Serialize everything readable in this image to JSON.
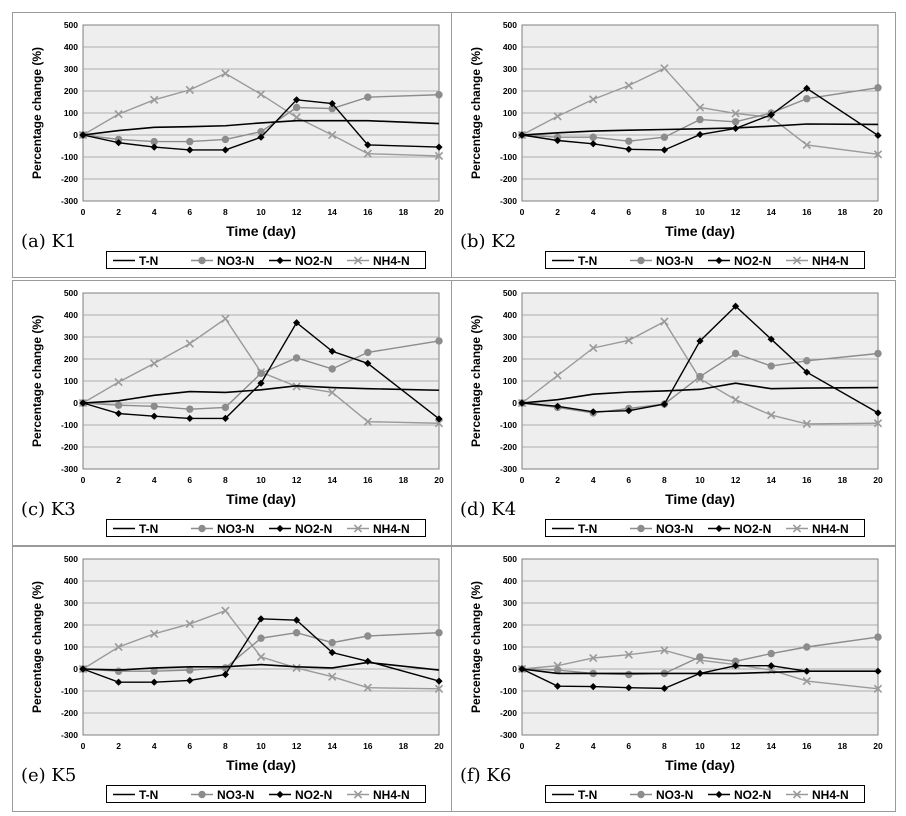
{
  "chart_data": [
    {
      "type": "line",
      "panel_label": "(a) K1",
      "xlabel": "Time (day)",
      "ylabel": "Percentage change (%)",
      "xlim": [
        0,
        20
      ],
      "ylim": [
        -300,
        500
      ],
      "x_ticks": [
        0,
        2,
        4,
        6,
        8,
        10,
        12,
        14,
        16,
        18,
        20
      ],
      "y_ticks": [
        -300,
        -200,
        -100,
        0,
        100,
        200,
        300,
        400,
        500
      ],
      "grid": "horizontal",
      "legend_position": "bottom",
      "x": [
        0,
        2,
        4,
        6,
        8,
        10,
        12,
        14,
        16,
        20
      ],
      "series": [
        {
          "name": "T-N",
          "marker": "none",
          "color": "#000000",
          "values": [
            0,
            20,
            35,
            38,
            42,
            55,
            65,
            65,
            65,
            52
          ]
        },
        {
          "name": "NO3-N",
          "marker": "circle",
          "color": "#8c8c8c",
          "values": [
            0,
            -20,
            -30,
            -30,
            -20,
            15,
            125,
            120,
            172,
            183
          ]
        },
        {
          "name": "NO2-N",
          "marker": "diamond",
          "color": "#000000",
          "values": [
            0,
            -35,
            -55,
            -68,
            -68,
            -10,
            160,
            143,
            -45,
            -55
          ]
        },
        {
          "name": "NH4-N",
          "marker": "x",
          "color": "#9a9a9a",
          "values": [
            0,
            95,
            160,
            205,
            280,
            185,
            80,
            0,
            -85,
            -95
          ]
        }
      ]
    },
    {
      "type": "line",
      "panel_label": "(b) K2",
      "xlabel": "Time (day)",
      "ylabel": "Percentage change (%)",
      "xlim": [
        0,
        20
      ],
      "ylim": [
        -300,
        500
      ],
      "x_ticks": [
        0,
        2,
        4,
        6,
        8,
        10,
        12,
        14,
        16,
        18,
        20
      ],
      "y_ticks": [
        -300,
        -200,
        -100,
        0,
        100,
        200,
        300,
        400,
        500
      ],
      "grid": "horizontal",
      "legend_position": "bottom",
      "x": [
        0,
        2,
        4,
        6,
        8,
        10,
        12,
        14,
        16,
        20
      ],
      "series": [
        {
          "name": "T-N",
          "marker": "none",
          "color": "#000000",
          "values": [
            0,
            10,
            18,
            22,
            25,
            28,
            32,
            40,
            50,
            48
          ]
        },
        {
          "name": "NO3-N",
          "marker": "circle",
          "color": "#8c8c8c",
          "values": [
            0,
            -10,
            -10,
            -28,
            -10,
            70,
            60,
            100,
            165,
            215
          ]
        },
        {
          "name": "NO2-N",
          "marker": "diamond",
          "color": "#000000",
          "values": [
            0,
            -25,
            -40,
            -65,
            -68,
            2,
            30,
            92,
            212,
            -2
          ]
        },
        {
          "name": "NH4-N",
          "marker": "x",
          "color": "#9a9a9a",
          "values": [
            0,
            85,
            162,
            225,
            303,
            125,
            98,
            80,
            -45,
            -88
          ]
        }
      ]
    },
    {
      "type": "line",
      "panel_label": "(c) K3",
      "xlabel": "Time (day)",
      "ylabel": "Percentage change (%)",
      "xlim": [
        0,
        20
      ],
      "ylim": [
        -300,
        500
      ],
      "x_ticks": [
        0,
        2,
        4,
        6,
        8,
        10,
        12,
        14,
        16,
        18,
        20
      ],
      "y_ticks": [
        -300,
        -200,
        -100,
        0,
        100,
        200,
        300,
        400,
        500
      ],
      "grid": "horizontal",
      "legend_position": "bottom",
      "x": [
        0,
        2,
        4,
        6,
        8,
        10,
        12,
        14,
        16,
        20
      ],
      "series": [
        {
          "name": "T-N",
          "marker": "none",
          "color": "#000000",
          "values": [
            0,
            10,
            35,
            52,
            48,
            60,
            78,
            70,
            65,
            58
          ]
        },
        {
          "name": "NO3-N",
          "marker": "circle",
          "color": "#8c8c8c",
          "values": [
            0,
            -10,
            -15,
            -28,
            -20,
            135,
            205,
            155,
            230,
            282
          ]
        },
        {
          "name": "NO2-N",
          "marker": "diamond",
          "color": "#000000",
          "values": [
            0,
            -48,
            -60,
            -70,
            -70,
            90,
            365,
            235,
            180,
            -72
          ]
        },
        {
          "name": "NH4-N",
          "marker": "x",
          "color": "#9a9a9a",
          "values": [
            0,
            95,
            180,
            270,
            383,
            140,
            75,
            48,
            -85,
            -92
          ]
        }
      ]
    },
    {
      "type": "line",
      "panel_label": "(d) K4",
      "xlabel": "Time (day)",
      "ylabel": "Percentage change (%)",
      "xlim": [
        0,
        20
      ],
      "ylim": [
        -300,
        500
      ],
      "x_ticks": [
        0,
        2,
        4,
        6,
        8,
        10,
        12,
        14,
        16,
        18,
        20
      ],
      "y_ticks": [
        -300,
        -200,
        -100,
        0,
        100,
        200,
        300,
        400,
        500
      ],
      "grid": "horizontal",
      "legend_position": "bottom",
      "x": [
        0,
        2,
        4,
        6,
        8,
        10,
        12,
        14,
        16,
        20
      ],
      "series": [
        {
          "name": "T-N",
          "marker": "none",
          "color": "#000000",
          "values": [
            0,
            15,
            40,
            50,
            55,
            62,
            90,
            65,
            68,
            70
          ]
        },
        {
          "name": "NO3-N",
          "marker": "circle",
          "color": "#8c8c8c",
          "values": [
            0,
            -20,
            -45,
            -25,
            -5,
            120,
            225,
            168,
            192,
            225
          ]
        },
        {
          "name": "NO2-N",
          "marker": "diamond",
          "color": "#000000",
          "values": [
            0,
            -15,
            -40,
            -35,
            -5,
            282,
            440,
            290,
            140,
            -45
          ]
        },
        {
          "name": "NH4-N",
          "marker": "x",
          "color": "#9a9a9a",
          "values": [
            0,
            125,
            250,
            285,
            370,
            110,
            15,
            -55,
            -95,
            -92
          ]
        }
      ]
    },
    {
      "type": "line",
      "panel_label": "(e) K5",
      "xlabel": "Time (day)",
      "ylabel": "Percentage change (%)",
      "xlim": [
        0,
        20
      ],
      "ylim": [
        -300,
        500
      ],
      "x_ticks": [
        0,
        2,
        4,
        6,
        8,
        10,
        12,
        14,
        16,
        18,
        20
      ],
      "y_ticks": [
        -300,
        -200,
        -100,
        0,
        100,
        200,
        300,
        400,
        500
      ],
      "grid": "horizontal",
      "legend_position": "bottom",
      "x": [
        0,
        2,
        4,
        6,
        8,
        10,
        12,
        14,
        16,
        20
      ],
      "series": [
        {
          "name": "T-N",
          "marker": "none",
          "color": "#000000",
          "values": [
            0,
            -5,
            5,
            10,
            10,
            20,
            10,
            5,
            30,
            -5
          ]
        },
        {
          "name": "NO3-N",
          "marker": "circle",
          "color": "#8c8c8c",
          "values": [
            0,
            -10,
            -10,
            -5,
            5,
            140,
            165,
            120,
            150,
            165
          ]
        },
        {
          "name": "NO2-N",
          "marker": "diamond",
          "color": "#000000",
          "values": [
            0,
            -60,
            -60,
            -52,
            -25,
            228,
            222,
            75,
            35,
            -55
          ]
        },
        {
          "name": "NH4-N",
          "marker": "x",
          "color": "#9a9a9a",
          "values": [
            0,
            100,
            160,
            205,
            265,
            55,
            5,
            -35,
            -85,
            -90
          ]
        }
      ]
    },
    {
      "type": "line",
      "panel_label": "(f) K6",
      "xlabel": "Time (day)",
      "ylabel": "Percentage change (%)",
      "xlim": [
        0,
        20
      ],
      "ylim": [
        -300,
        500
      ],
      "x_ticks": [
        0,
        2,
        4,
        6,
        8,
        10,
        12,
        14,
        16,
        18,
        20
      ],
      "y_ticks": [
        -300,
        -200,
        -100,
        0,
        100,
        200,
        300,
        400,
        500
      ],
      "grid": "horizontal",
      "legend_position": "bottom",
      "x": [
        0,
        2,
        4,
        6,
        8,
        10,
        12,
        14,
        16,
        20
      ],
      "series": [
        {
          "name": "T-N",
          "marker": "none",
          "color": "#000000",
          "values": [
            0,
            -20,
            -20,
            -20,
            -20,
            -20,
            -20,
            -15,
            -10,
            -10
          ]
        },
        {
          "name": "NO3-N",
          "marker": "circle",
          "color": "#8c8c8c",
          "values": [
            0,
            -5,
            -20,
            -25,
            -20,
            55,
            35,
            70,
            100,
            145
          ]
        },
        {
          "name": "NO2-N",
          "marker": "diamond",
          "color": "#000000",
          "values": [
            0,
            -78,
            -80,
            -85,
            -88,
            -20,
            15,
            15,
            -10,
            -10
          ]
        },
        {
          "name": "NH4-N",
          "marker": "x",
          "color": "#9a9a9a",
          "values": [
            0,
            15,
            50,
            65,
            85,
            40,
            20,
            -5,
            -55,
            -90
          ]
        }
      ]
    }
  ]
}
